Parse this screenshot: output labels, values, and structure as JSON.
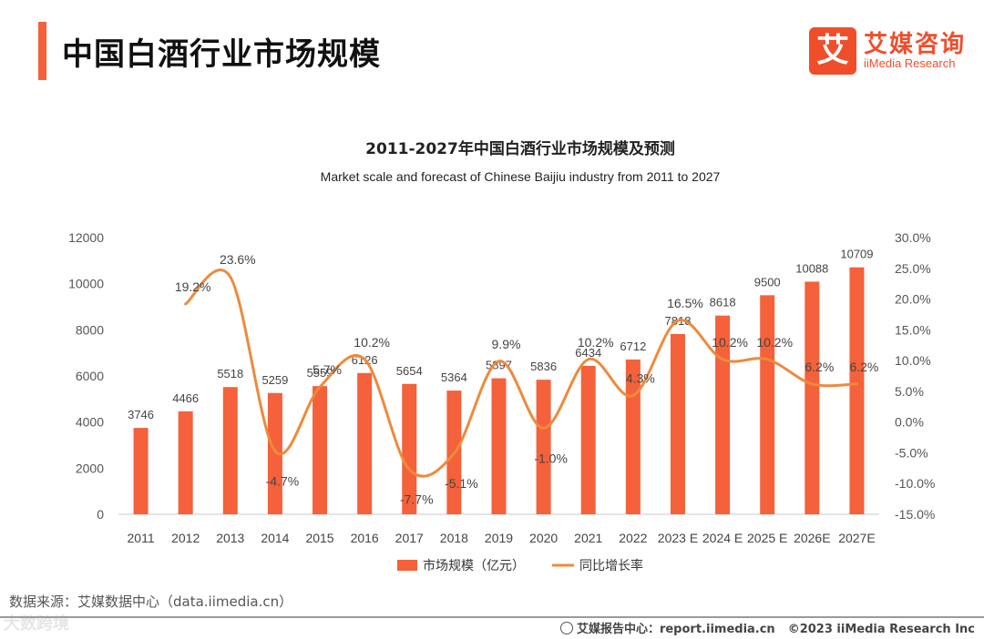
{
  "header": {
    "title": "中国白酒行业市场规模"
  },
  "logo": {
    "cn": "艾媒咨询",
    "en": "iiMedia Research",
    "mark": "艾"
  },
  "chart_data": {
    "type": "bar+line",
    "title": "2011-2027年中国白酒行业市场规模及预测",
    "subtitle": "Market scale and forecast of Chinese Baijiu industry from 2011 to 2027",
    "categories": [
      "2011",
      "2012",
      "2013",
      "2014",
      "2015",
      "2016",
      "2017",
      "2018",
      "2019",
      "2020",
      "2021",
      "2022",
      "2023 E",
      "2024 E",
      "2025 E",
      "2026E",
      "2027E"
    ],
    "series": [
      {
        "name": "市场规模（亿元）",
        "type": "bar",
        "axis": "left",
        "color": "#f4613a",
        "values": [
          3746,
          4466,
          5518,
          5259,
          5559,
          6126,
          5654,
          5364,
          5897,
          5836,
          6434,
          6712,
          7818,
          8618,
          9500,
          10088,
          10709
        ]
      },
      {
        "name": "同比增长率",
        "type": "line",
        "axis": "right",
        "color": "#ee8a3c",
        "unit": "%",
        "values": [
          null,
          19.2,
          23.6,
          -4.7,
          5.7,
          10.2,
          -7.7,
          -5.1,
          9.9,
          -1.0,
          10.2,
          4.3,
          16.5,
          10.2,
          10.2,
          6.2,
          6.2
        ]
      }
    ],
    "left_axis": {
      "ylim": [
        0,
        12000
      ],
      "ticks": [
        "0",
        "2000",
        "4000",
        "6000",
        "8000",
        "10000",
        "12000"
      ]
    },
    "right_axis": {
      "ylim": [
        -15,
        30
      ],
      "ticks": [
        "-15.0%",
        "-10.0%",
        "-5.0%",
        "0.0%",
        "5.0%",
        "10.0%",
        "15.0%",
        "20.0%",
        "25.0%",
        "30.0%"
      ]
    },
    "legend_position": "bottom",
    "grid": false
  },
  "source": "数据来源：艾媒数据中心（data.iimedia.cn）",
  "watermark": "大数跨境",
  "footer": {
    "report": "艾媒报告中心：report.iimedia.cn",
    "copyright": "©2023  iiMedia Research  Inc"
  }
}
